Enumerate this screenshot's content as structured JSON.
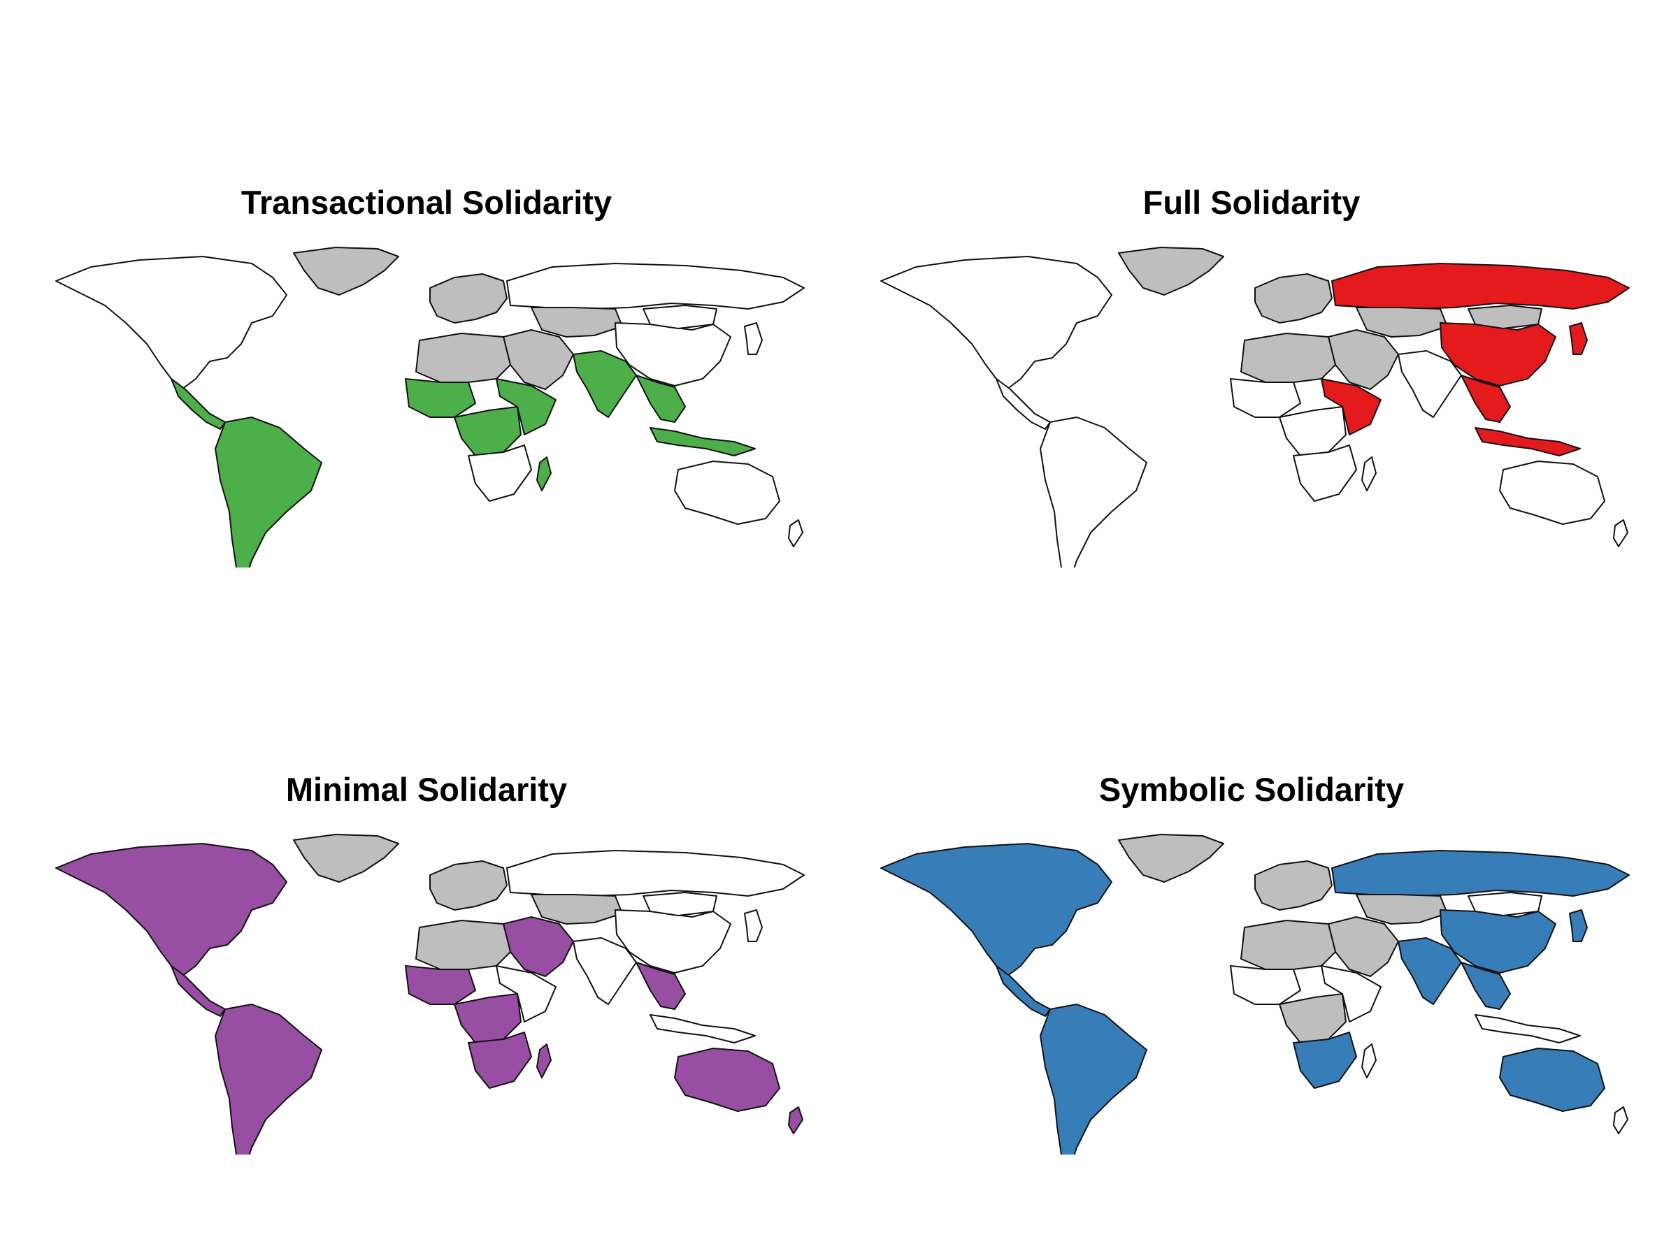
{
  "panels": [
    {
      "key": "transactional",
      "title": "Transactional Solidarity",
      "fill": "#4DAF4A"
    },
    {
      "key": "full",
      "title": "Full Solidarity",
      "fill": "#E41A1C"
    },
    {
      "key": "minimal",
      "title": "Minimal Solidarity",
      "fill": "#984EA3"
    },
    {
      "key": "symbolic",
      "title": "Symbolic Solidarity",
      "fill": "#377EB8"
    }
  ],
  "colors": {
    "no_data": "#BEBEBE",
    "other": "#FFFFFF",
    "border": "#111111"
  },
  "regions": [
    "north-america",
    "greenland",
    "central-america",
    "south-america",
    "europe",
    "russia",
    "middle-east",
    "central-asia",
    "china",
    "mongolia",
    "india",
    "southeast-asia",
    "indonesia",
    "japan",
    "north-africa",
    "west-africa",
    "east-africa",
    "central-africa",
    "southern-africa",
    "madagascar",
    "australia",
    "new-zealand"
  ],
  "assignments": {
    "transactional": {
      "highlight": [
        "central-america",
        "south-america",
        "west-africa",
        "east-africa",
        "central-africa",
        "madagascar",
        "india",
        "southeast-asia",
        "indonesia"
      ],
      "no_data": [
        "greenland",
        "europe",
        "middle-east",
        "central-asia",
        "north-africa"
      ]
    },
    "full": {
      "highlight": [
        "russia",
        "china",
        "east-africa",
        "southeast-asia",
        "indonesia",
        "japan"
      ],
      "no_data": [
        "greenland",
        "europe",
        "middle-east",
        "central-asia",
        "north-africa",
        "mongolia"
      ]
    },
    "minimal": {
      "highlight": [
        "north-america",
        "central-america",
        "south-america",
        "west-africa",
        "central-africa",
        "southern-africa",
        "madagascar",
        "middle-east",
        "southeast-asia",
        "australia",
        "new-zealand"
      ],
      "no_data": [
        "greenland",
        "europe",
        "central-asia",
        "north-africa"
      ]
    },
    "symbolic": {
      "highlight": [
        "north-america",
        "central-america",
        "south-america",
        "russia",
        "china",
        "india",
        "southeast-asia",
        "japan",
        "southern-africa",
        "australia"
      ],
      "no_data": [
        "greenland",
        "europe",
        "middle-east",
        "central-asia",
        "north-africa",
        "central-africa"
      ]
    }
  }
}
